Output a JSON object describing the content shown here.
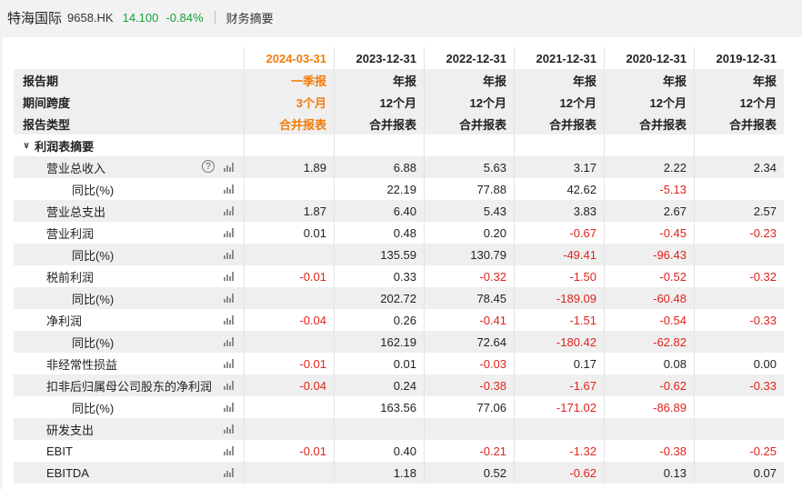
{
  "header": {
    "stock_name": "特海国际",
    "stock_code": "9658.HK",
    "price": "14.100",
    "change": "-0.84%",
    "tab": "财务摘要"
  },
  "columns": [
    {
      "date": "2024-03-31",
      "period": "一季报",
      "span": "3个月",
      "type": "合并报表",
      "highlight": true
    },
    {
      "date": "2023-12-31",
      "period": "年报",
      "span": "12个月",
      "type": "合并报表",
      "highlight": false
    },
    {
      "date": "2022-12-31",
      "period": "年报",
      "span": "12个月",
      "type": "合并报表",
      "highlight": false
    },
    {
      "date": "2021-12-31",
      "period": "年报",
      "span": "12个月",
      "type": "合并报表",
      "highlight": false
    },
    {
      "date": "2020-12-31",
      "period": "年报",
      "span": "12个月",
      "type": "合并报表",
      "highlight": false
    },
    {
      "date": "2019-12-31",
      "period": "年报",
      "span": "12个月",
      "type": "合并报表",
      "highlight": false
    }
  ],
  "row_labels": {
    "period": "报告期",
    "span": "期间跨度",
    "type": "报告类型"
  },
  "section": {
    "label": "利润表摘要"
  },
  "rows": [
    {
      "label": "营业总收入",
      "level": 1,
      "help": true,
      "values": [
        "1.89",
        "6.88",
        "5.63",
        "3.17",
        "2.22",
        "2.34"
      ]
    },
    {
      "label": "同比(%)",
      "level": 2,
      "values": [
        "",
        "22.19",
        "77.88",
        "42.62",
        "-5.13",
        ""
      ]
    },
    {
      "label": "营业总支出",
      "level": 1,
      "values": [
        "1.87",
        "6.40",
        "5.43",
        "3.83",
        "2.67",
        "2.57"
      ]
    },
    {
      "label": "营业利润",
      "level": 1,
      "values": [
        "0.01",
        "0.48",
        "0.20",
        "-0.67",
        "-0.45",
        "-0.23"
      ]
    },
    {
      "label": "同比(%)",
      "level": 2,
      "values": [
        "",
        "135.59",
        "130.79",
        "-49.41",
        "-96.43",
        ""
      ]
    },
    {
      "label": "税前利润",
      "level": 1,
      "values": [
        "-0.01",
        "0.33",
        "-0.32",
        "-1.50",
        "-0.52",
        "-0.32"
      ]
    },
    {
      "label": "同比(%)",
      "level": 2,
      "values": [
        "",
        "202.72",
        "78.45",
        "-189.09",
        "-60.48",
        ""
      ]
    },
    {
      "label": "净利润",
      "level": 1,
      "values": [
        "-0.04",
        "0.26",
        "-0.41",
        "-1.51",
        "-0.54",
        "-0.33"
      ]
    },
    {
      "label": "同比(%)",
      "level": 2,
      "values": [
        "",
        "162.19",
        "72.64",
        "-180.42",
        "-62.82",
        ""
      ]
    },
    {
      "label": "非经常性损益",
      "level": 1,
      "values": [
        "-0.01",
        "0.01",
        "-0.03",
        "0.17",
        "0.08",
        "0.00"
      ]
    },
    {
      "label": "扣非后归属母公司股东的净利润",
      "level": 1,
      "values": [
        "-0.04",
        "0.24",
        "-0.38",
        "-1.67",
        "-0.62",
        "-0.33"
      ]
    },
    {
      "label": "同比(%)",
      "level": 2,
      "values": [
        "",
        "163.56",
        "77.06",
        "-171.02",
        "-86.89",
        ""
      ]
    },
    {
      "label": "研发支出",
      "level": 1,
      "values": [
        "",
        "",
        "",
        "",
        "",
        ""
      ]
    },
    {
      "label": "EBIT",
      "level": 1,
      "values": [
        "-0.01",
        "0.40",
        "-0.21",
        "-1.32",
        "-0.38",
        "-0.25"
      ]
    },
    {
      "label": "EBITDA",
      "level": 1,
      "values": [
        "",
        "1.18",
        "0.52",
        "-0.62",
        "0.13",
        "0.07"
      ]
    }
  ],
  "colors": {
    "up": "#e0231c",
    "down": "#14a037",
    "highlight": "#f27b0c"
  }
}
